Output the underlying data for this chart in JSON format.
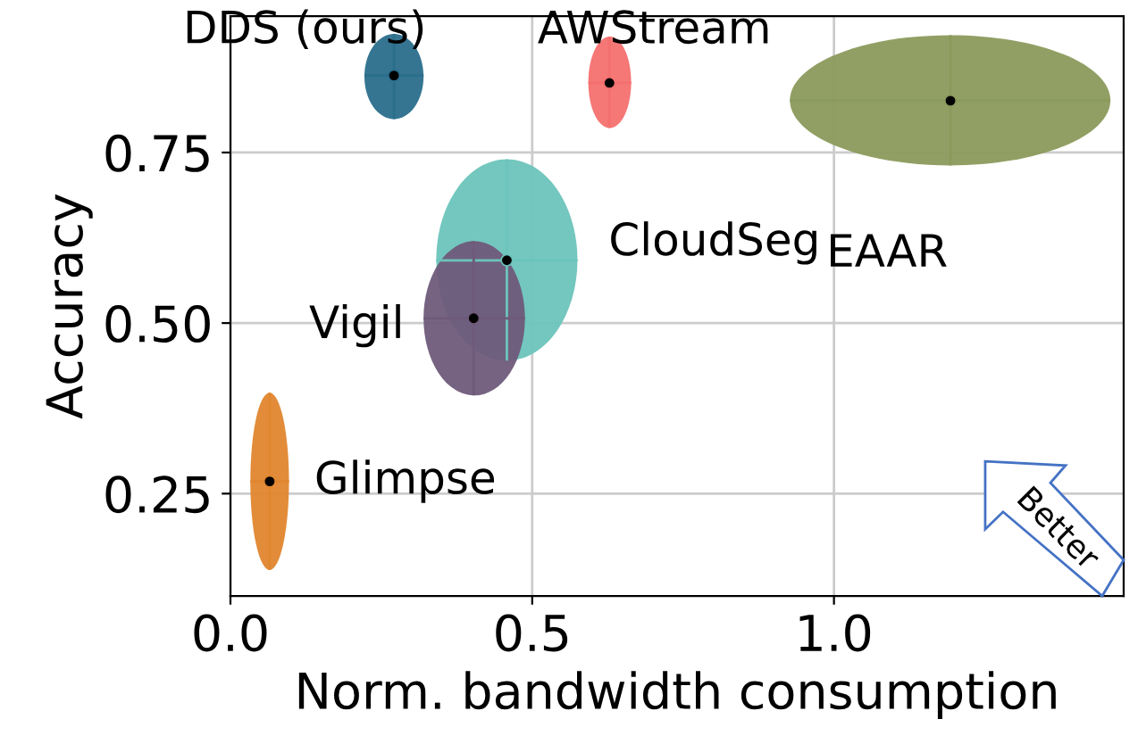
{
  "chart_data": {
    "type": "scatter",
    "xlabel": "Norm. bandwidth consumption",
    "ylabel": "Accuracy",
    "xlim": [
      0,
      1.48
    ],
    "ylim": [
      0.1,
      0.95
    ],
    "xticks": [
      {
        "value": 0,
        "label": "0.0"
      },
      {
        "value": 0.5,
        "label": "0.5"
      },
      {
        "value": 1.0,
        "label": "1.0"
      }
    ],
    "yticks": [
      {
        "value": 0.25,
        "label": "0.25"
      },
      {
        "value": 0.5,
        "label": "0.50"
      },
      {
        "value": 0.75,
        "label": "0.75"
      }
    ],
    "grid": true,
    "legend": false,
    "marker": "circle",
    "series": [
      {
        "name": "DDS (ours)",
        "color": "#2a6e8c",
        "x": [
          0.271
        ],
        "values": [
          0.863
        ],
        "xerrors": [
          [
            0.222,
            0.32
          ]
        ],
        "errors": [
          [
            0.799,
            0.924
          ]
        ]
      },
      {
        "name": "AWStream",
        "color": "#f4706f",
        "x": [
          0.628
        ],
        "values": [
          0.852
        ],
        "xerrors": [
          [
            0.593,
            0.664
          ]
        ],
        "errors": [
          [
            0.786,
            0.92
          ]
        ]
      },
      {
        "name": "EAAR",
        "color": "#8b9a5c",
        "x": [
          1.193
        ],
        "values": [
          0.826
        ],
        "xerrors": [
          [
            0.927,
            1.458
          ]
        ],
        "errors": [
          [
            0.731,
            0.922
          ]
        ]
      },
      {
        "name": "CloudSeg",
        "color": "#6cc4bb",
        "x": [
          0.458
        ],
        "values": [
          0.592
        ],
        "xerrors": [
          [
            0.341,
            0.575
          ]
        ],
        "errors": [
          [
            0.445,
            0.74
          ]
        ]
      },
      {
        "name": "Vigil",
        "color": "#6f5a7a",
        "x": [
          0.403
        ],
        "values": [
          0.507
        ],
        "xerrors": [
          [
            0.32,
            0.488
          ]
        ],
        "errors": [
          [
            0.394,
            0.62
          ]
        ]
      },
      {
        "name": "Glimpse",
        "color": "#e0862f",
        "x": [
          0.065
        ],
        "values": [
          0.268
        ],
        "xerrors": [
          [
            0.033,
            0.097
          ]
        ],
        "errors": [
          [
            0.138,
            0.398
          ]
        ]
      }
    ],
    "annotations": [
      "Better"
    ]
  }
}
